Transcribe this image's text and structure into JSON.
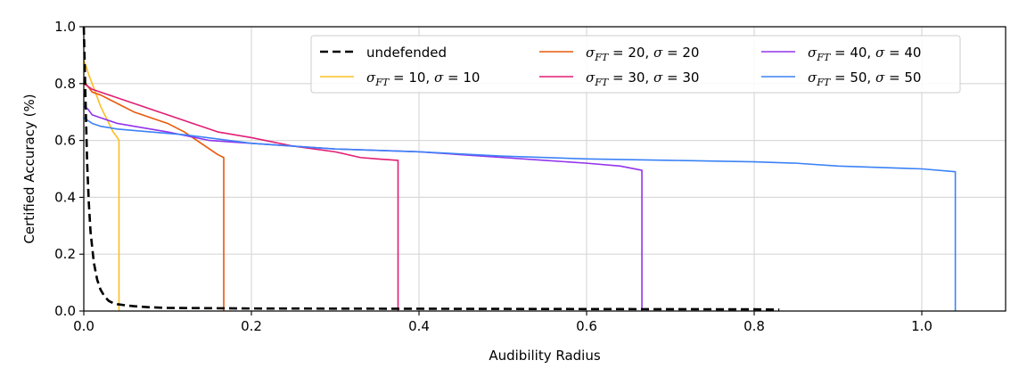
{
  "chart_data": {
    "type": "line",
    "title": "",
    "xlabel": "Audibility Radius",
    "ylabel": "Certified Accuracy (%)",
    "xlim": [
      0.0,
      1.1
    ],
    "ylim": [
      0.0,
      1.0
    ],
    "xticks": [
      0.0,
      0.2,
      0.4,
      0.6,
      0.8,
      1.0
    ],
    "xtick_labels": [
      "0.0",
      "0.2",
      "0.4",
      "0.6",
      "0.8",
      "1.0"
    ],
    "yticks": [
      0.0,
      0.2,
      0.4,
      0.6,
      0.8,
      1.0
    ],
    "ytick_labels": [
      "0.0",
      "0.2",
      "0.4",
      "0.6",
      "0.8",
      "1.0"
    ],
    "grid": true,
    "legend_position": "top-right",
    "legend_columns": 3,
    "series": [
      {
        "name": "undefended",
        "legend": {
          "main": "undefended"
        },
        "color": "#000000",
        "dashed": true,
        "x": [
          0.0,
          0.002,
          0.004,
          0.006,
          0.008,
          0.012,
          0.016,
          0.02,
          0.025,
          0.03,
          0.035,
          0.04,
          0.05,
          0.06,
          0.08,
          0.1,
          0.2,
          0.4,
          0.6,
          0.8,
          0.83
        ],
        "y": [
          1.0,
          0.75,
          0.52,
          0.38,
          0.28,
          0.17,
          0.11,
          0.075,
          0.05,
          0.035,
          0.028,
          0.024,
          0.02,
          0.017,
          0.013,
          0.011,
          0.009,
          0.008,
          0.007,
          0.006,
          0.005
        ]
      },
      {
        "name": "sigma_FT = 10, sigma = 10",
        "legend": {
          "sym1": "σ",
          "sub": "FT",
          "eq1": " = 10, ",
          "sym2": "σ",
          "eq2": " = 10"
        },
        "color": "#fbbf24",
        "dashed": false,
        "x": [
          0.0,
          0.003,
          0.006,
          0.01,
          0.015,
          0.02,
          0.025,
          0.03,
          0.035,
          0.04,
          0.042,
          0.042
        ],
        "y": [
          0.88,
          0.86,
          0.83,
          0.8,
          0.76,
          0.72,
          0.69,
          0.66,
          0.63,
          0.61,
          0.6,
          0.0
        ]
      },
      {
        "name": "sigma_FT = 20, sigma = 20",
        "legend": {
          "sym1": "σ",
          "sub": "FT",
          "eq1": " = 20, ",
          "sym2": "σ",
          "eq2": " = 20"
        },
        "color": "#ea580c",
        "dashed": false,
        "x": [
          0.0,
          0.005,
          0.01,
          0.02,
          0.04,
          0.06,
          0.08,
          0.1,
          0.12,
          0.14,
          0.16,
          0.167,
          0.167
        ],
        "y": [
          0.81,
          0.79,
          0.77,
          0.76,
          0.73,
          0.7,
          0.68,
          0.66,
          0.63,
          0.59,
          0.55,
          0.54,
          0.0
        ]
      },
      {
        "name": "sigma_FT = 30, sigma = 30",
        "legend": {
          "sym1": "σ",
          "sub": "FT",
          "eq1": " = 30, ",
          "sym2": "σ",
          "eq2": " = 30"
        },
        "color": "#e11d74",
        "dashed": false,
        "x": [
          0.0,
          0.01,
          0.02,
          0.04,
          0.06,
          0.08,
          0.1,
          0.13,
          0.16,
          0.2,
          0.25,
          0.3,
          0.33,
          0.35,
          0.375,
          0.375
        ],
        "y": [
          0.8,
          0.78,
          0.77,
          0.75,
          0.73,
          0.71,
          0.69,
          0.66,
          0.63,
          0.61,
          0.58,
          0.56,
          0.54,
          0.535,
          0.53,
          0.0
        ]
      },
      {
        "name": "sigma_FT = 40, sigma = 40",
        "legend": {
          "sym1": "σ",
          "sub": "FT",
          "eq1": " = 40, ",
          "sym2": "σ",
          "eq2": " = 40"
        },
        "color": "#9333ea",
        "dashed": false,
        "x": [
          0.0,
          0.005,
          0.01,
          0.02,
          0.04,
          0.06,
          0.1,
          0.15,
          0.2,
          0.3,
          0.4,
          0.5,
          0.55,
          0.6,
          0.64,
          0.666,
          0.666
        ],
        "y": [
          0.72,
          0.71,
          0.69,
          0.68,
          0.66,
          0.65,
          0.63,
          0.6,
          0.59,
          0.57,
          0.56,
          0.54,
          0.53,
          0.52,
          0.51,
          0.495,
          0.0
        ]
      },
      {
        "name": "sigma_FT = 50, sigma = 50",
        "legend": {
          "sym1": "σ",
          "sub": "FT",
          "eq1": " = 50, ",
          "sym2": "σ",
          "eq2": " = 50"
        },
        "color": "#3b82f6",
        "dashed": false,
        "x": [
          0.0,
          0.005,
          0.01,
          0.02,
          0.04,
          0.08,
          0.12,
          0.2,
          0.3,
          0.4,
          0.5,
          0.6,
          0.7,
          0.8,
          0.85,
          0.9,
          1.0,
          1.04,
          1.04
        ],
        "y": [
          0.68,
          0.67,
          0.66,
          0.65,
          0.64,
          0.63,
          0.62,
          0.59,
          0.57,
          0.56,
          0.545,
          0.535,
          0.53,
          0.525,
          0.52,
          0.51,
          0.5,
          0.49,
          0.0
        ]
      }
    ]
  }
}
